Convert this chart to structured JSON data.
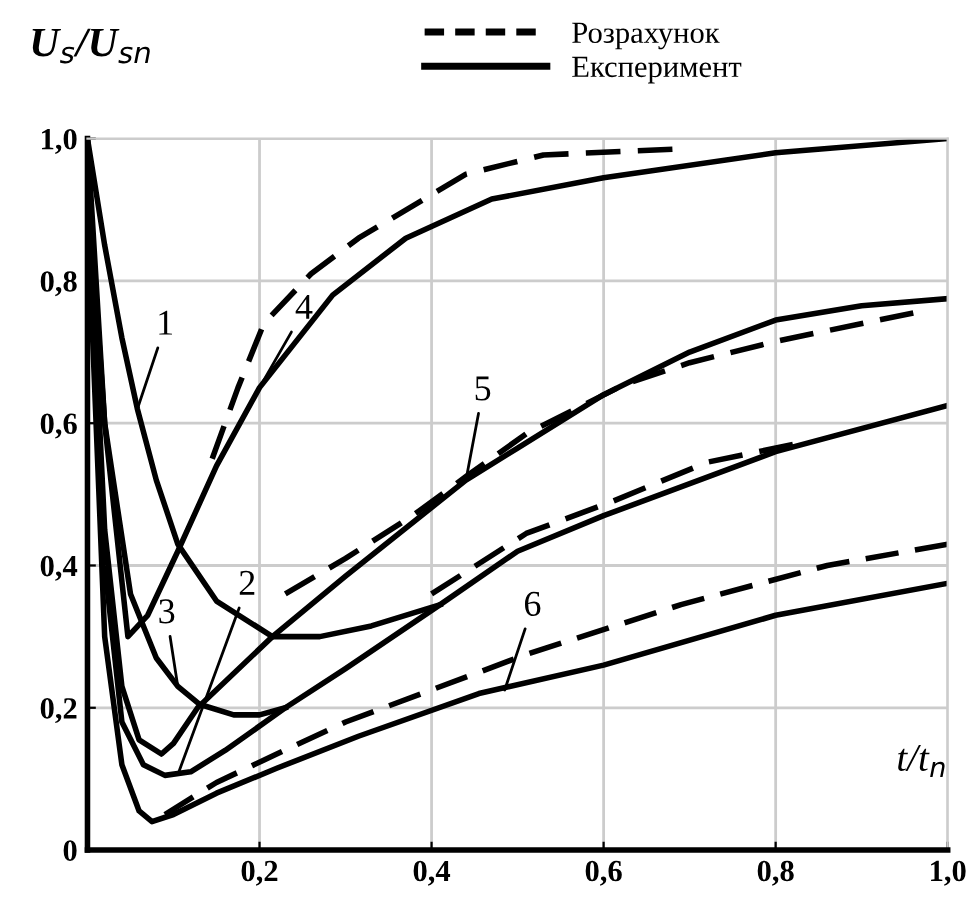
{
  "chart_data": {
    "type": "line",
    "xlabel": "t/t$_{n}$",
    "ylabel": "U$_{s}$/U$_{sn}$",
    "xlim": [
      0,
      1.0
    ],
    "ylim": [
      0,
      1.0
    ],
    "xticks": [
      {
        "value": 0,
        "label": null
      },
      {
        "value": 0.2,
        "label": "0,2"
      },
      {
        "value": 0.4,
        "label": "0,4"
      },
      {
        "value": 0.6,
        "label": "0,6"
      },
      {
        "value": 0.8,
        "label": "0,8"
      },
      {
        "value": 1.0,
        "label": "1,0"
      }
    ],
    "yticks": [
      {
        "value": 0,
        "label": "0"
      },
      {
        "value": 0.2,
        "label": "0,2"
      },
      {
        "value": 0.4,
        "label": "0,4"
      },
      {
        "value": 0.6,
        "label": "0,6"
      },
      {
        "value": 0.8,
        "label": "0,8"
      },
      {
        "value": 1.0,
        "label": "1,0"
      }
    ],
    "grid": true,
    "legend": "top",
    "marker": "none",
    "series": [
      {
        "name": "Розрахунок",
        "color": "#000000",
        "line_style": "dashed",
        "x": [
          0.145,
          0.175,
          0.205,
          0.26,
          0.315,
          0.44,
          0.53,
          0.68
        ],
        "values": [
          0.55,
          0.65,
          0.74,
          0.81,
          0.86,
          0.95,
          0.977,
          0.985
        ]
      },
      {
        "name": "Експеримент",
        "color": "#000000",
        "line_style": "solid",
        "x": [
          0,
          0.02,
          0.047,
          0.07,
          0.105,
          0.15,
          0.2,
          0.285,
          0.37,
          0.47,
          0.6,
          0.8,
          1.0
        ],
        "values": [
          1.0,
          0.6,
          0.3,
          0.33,
          0.42,
          0.54,
          0.65,
          0.78,
          0.86,
          0.915,
          0.945,
          0.98,
          1.0
        ]
      },
      {
        "color": "#000000",
        "line_style": "dashed",
        "x": [
          0.23,
          0.3,
          0.378,
          0.44,
          0.51,
          0.625,
          0.7,
          0.8,
          0.96
        ],
        "values": [
          0.36,
          0.41,
          0.47,
          0.525,
          0.585,
          0.655,
          0.685,
          0.715,
          0.755
        ]
      },
      {
        "color": "#000000",
        "line_style": "dashed",
        "x": [
          0.4,
          0.51,
          0.61,
          0.72,
          0.82
        ],
        "values": [
          0.36,
          0.445,
          0.49,
          0.545,
          0.57
        ]
      },
      {
        "color": "#000000",
        "line_style": "dashed",
        "x": [
          0.09,
          0.15,
          0.22,
          0.3,
          0.455,
          0.51,
          0.69,
          0.86,
          1.0
        ],
        "values": [
          0.05,
          0.095,
          0.135,
          0.18,
          0.25,
          0.275,
          0.345,
          0.4,
          0.43
        ]
      },
      {
        "color": "#000000",
        "line_style": "solid",
        "x": [
          0,
          0.02,
          0.04,
          0.058,
          0.08,
          0.105,
          0.15,
          0.215,
          0.27,
          0.33,
          0.41
        ],
        "values": [
          1.0,
          0.85,
          0.72,
          0.62,
          0.52,
          0.43,
          0.35,
          0.3,
          0.3,
          0.315,
          0.345
        ]
      },
      {
        "color": "#000000",
        "line_style": "solid",
        "x": [
          0,
          0.02,
          0.04,
          0.06,
          0.086,
          0.1,
          0.128,
          0.215,
          0.3,
          0.44,
          0.5,
          0.6,
          0.7,
          0.8,
          0.9,
          1.0
        ],
        "values": [
          0.95,
          0.45,
          0.23,
          0.155,
          0.135,
          0.15,
          0.2,
          0.3,
          0.385,
          0.52,
          0.565,
          0.64,
          0.7,
          0.745,
          0.765,
          0.775
        ]
      },
      {
        "color": "#000000",
        "line_style": "solid",
        "x": [
          0,
          0.02,
          0.05,
          0.08,
          0.105,
          0.13,
          0.17,
          0.2,
          0.23
        ],
        "values": [
          0.95,
          0.6,
          0.36,
          0.27,
          0.23,
          0.205,
          0.19,
          0.19,
          0.2
        ]
      },
      {
        "color": "#000000",
        "line_style": "solid",
        "x": [
          0,
          0.02,
          0.04,
          0.065,
          0.09,
          0.12,
          0.16,
          0.23,
          0.3,
          0.41,
          0.5,
          0.6,
          0.8,
          1.0
        ],
        "values": [
          0.9,
          0.4,
          0.18,
          0.12,
          0.105,
          0.11,
          0.14,
          0.2,
          0.255,
          0.345,
          0.42,
          0.47,
          0.56,
          0.625
        ]
      },
      {
        "color": "#000000",
        "line_style": "solid",
        "x": [
          0,
          0.02,
          0.04,
          0.06,
          0.075,
          0.1,
          0.15,
          0.22,
          0.315,
          0.455,
          0.6,
          0.8,
          1.0
        ],
        "values": [
          0.9,
          0.3,
          0.12,
          0.055,
          0.04,
          0.05,
          0.08,
          0.115,
          0.16,
          0.22,
          0.26,
          0.33,
          0.375
        ]
      }
    ],
    "annotations": [
      {
        "text": "1",
        "x": 0.058,
        "y": 0.62
      },
      {
        "text": "4",
        "x": 0.2,
        "y": 0.65
      },
      {
        "text": "5",
        "x": 0.44,
        "y": 0.52
      },
      {
        "text": "3",
        "x": 0.105,
        "y": 0.23
      },
      {
        "text": "2",
        "x": 0.105,
        "y": 0.106
      },
      {
        "text": "6",
        "x": 0.485,
        "y": 0.225
      }
    ]
  }
}
